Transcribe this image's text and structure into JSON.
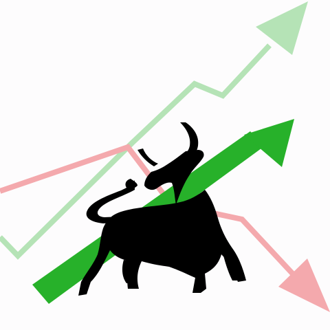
{
  "illustration": {
    "subject": "bull-market-concept",
    "colors": {
      "background": "#fdfcfd",
      "rising_trend_light": "#b5e3b6",
      "falling_trend": "#f4a9ad",
      "rising_arrow_main": "#27b12a",
      "bull_silhouette": "#000000"
    },
    "icons": [
      "bull-silhouette-icon",
      "rising-arrow-icon",
      "falling-arrow-icon",
      "light-rising-arrow-icon"
    ]
  }
}
